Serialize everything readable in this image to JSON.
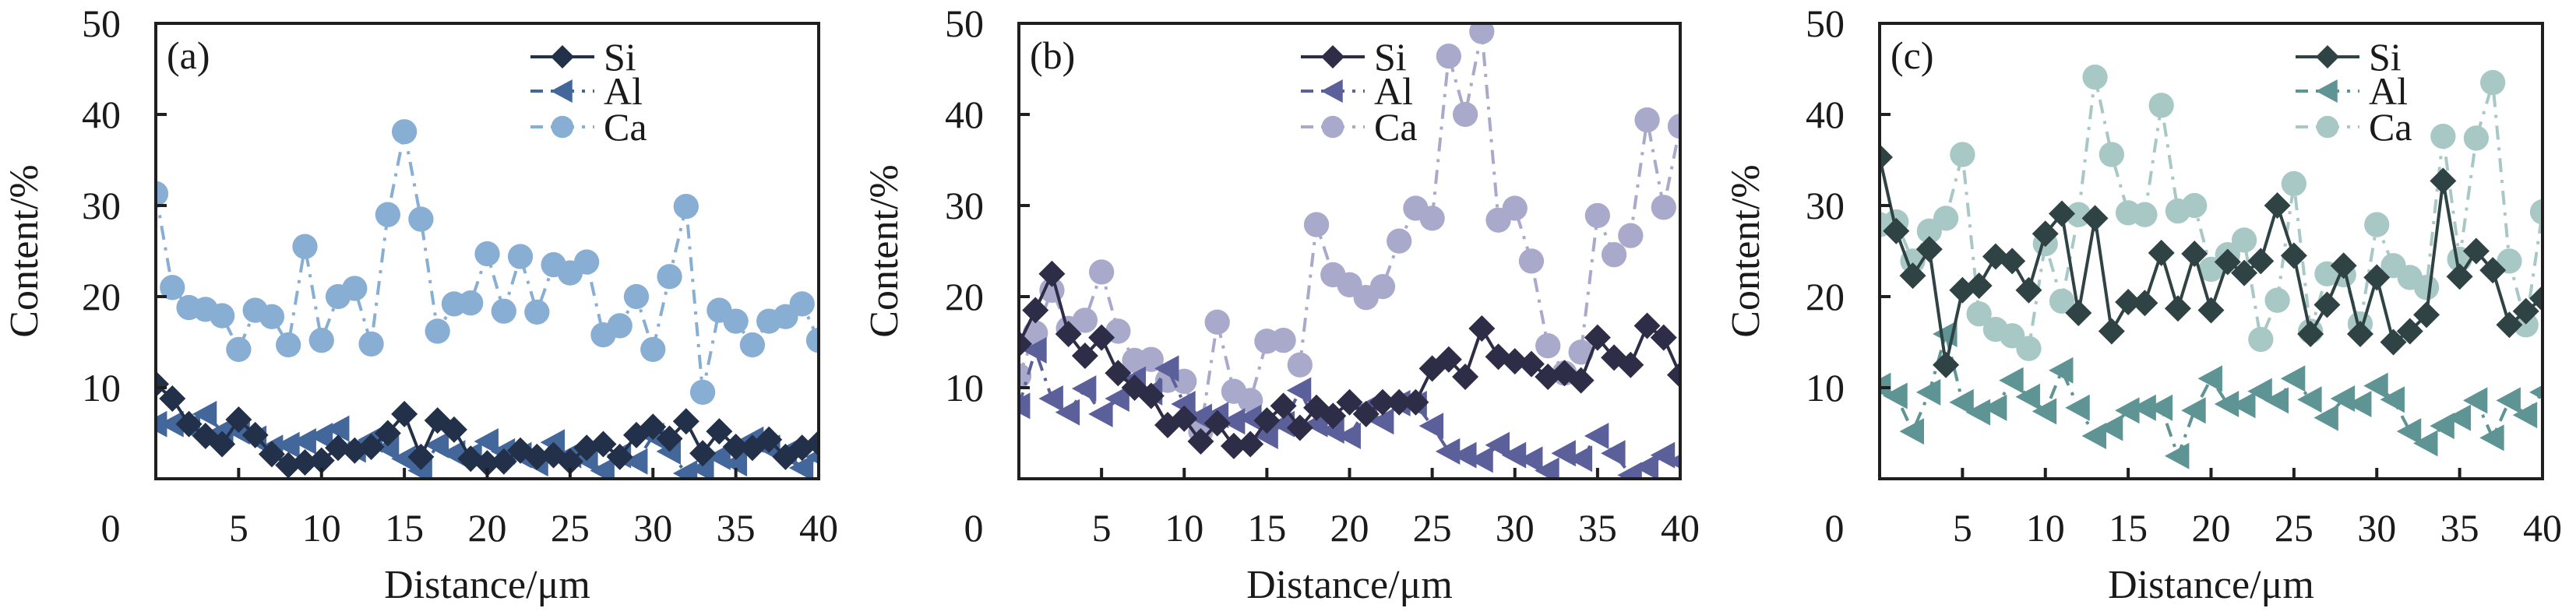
{
  "chart_data": [
    {
      "type": "line",
      "panel_label": "(a)",
      "xlabel": "Distance/μm",
      "ylabel": "Content/%",
      "xlim": [
        0,
        40
      ],
      "ylim": [
        0,
        50
      ],
      "xticks": [
        0,
        5,
        10,
        15,
        20,
        25,
        30,
        35,
        40
      ],
      "yticks": [
        0,
        10,
        20,
        30,
        40,
        50
      ],
      "grid": false,
      "legend_position": "top-right",
      "x": [
        0,
        1,
        2,
        3,
        4,
        5,
        6,
        7,
        8,
        9,
        10,
        11,
        12,
        13,
        14,
        15,
        16,
        17,
        18,
        19,
        20,
        21,
        22,
        23,
        24,
        25,
        26,
        27,
        28,
        29,
        30,
        31,
        32,
        33,
        34,
        35,
        36,
        37,
        38,
        39,
        40
      ],
      "series": [
        {
          "name": "Si",
          "marker": "diamond",
          "line": "solid",
          "color": "#22304a",
          "values": [
            10.4,
            8.8,
            6.0,
            4.7,
            3.8,
            6.5,
            4.8,
            2.7,
            1.5,
            1.8,
            2.0,
            3.4,
            3.1,
            3.5,
            5.0,
            7.1,
            2.4,
            6.4,
            5.4,
            2.2,
            1.7,
            1.9,
            3.1,
            2.4,
            2.6,
            1.9,
            3.4,
            3.8,
            2.4,
            4.8,
            5.7,
            4.4,
            6.3,
            2.8,
            5.2,
            3.5,
            3.4,
            4.3,
            2.4,
            3.4,
            3.9
          ]
        },
        {
          "name": "Al",
          "marker": "triangle-left",
          "line": "dash-dot",
          "color": "#43679b",
          "values": [
            6.0,
            6.0,
            5.7,
            7.1,
            5.2,
            5.2,
            4.4,
            3.4,
            3.7,
            4.1,
            4.7,
            5.5,
            3.2,
            4.3,
            3.4,
            2.2,
            0.9,
            3.7,
            2.8,
            2.6,
            4.1,
            3.0,
            2.6,
            1.7,
            4.0,
            2.6,
            2.1,
            0.9,
            2.6,
            1.9,
            4.7,
            3.0,
            0.6,
            1.1,
            2.4,
            1.7,
            4.3,
            3.4,
            2.8,
            1.2,
            2.4
          ]
        },
        {
          "name": "Ca",
          "marker": "circle",
          "line": "dash-dot",
          "color": "#88aed4",
          "values": [
            31.3,
            21.0,
            18.8,
            18.6,
            17.9,
            14.2,
            18.5,
            17.8,
            14.7,
            25.5,
            15.2,
            20.0,
            20.9,
            14.8,
            29.0,
            38.1,
            28.5,
            16.2,
            19.2,
            19.3,
            24.7,
            18.4,
            24.4,
            18.3,
            23.5,
            22.6,
            23.8,
            15.8,
            16.8,
            20.0,
            14.2,
            22.2,
            29.9,
            9.5,
            18.5,
            17.3,
            14.7,
            17.3,
            17.8,
            19.2,
            15.2
          ]
        }
      ]
    },
    {
      "type": "line",
      "panel_label": "(b)",
      "xlabel": "Distance/μm",
      "ylabel": "Content/%",
      "xlim": [
        0,
        40
      ],
      "ylim": [
        0,
        50
      ],
      "xticks": [
        0,
        5,
        10,
        15,
        20,
        25,
        30,
        35,
        40
      ],
      "yticks": [
        0,
        10,
        20,
        30,
        40,
        50
      ],
      "grid": false,
      "legend_position": "top-center",
      "x": [
        0,
        1,
        2,
        3,
        4,
        5,
        6,
        7,
        8,
        9,
        10,
        11,
        12,
        13,
        14,
        15,
        16,
        17,
        18,
        19,
        20,
        21,
        22,
        23,
        24,
        25,
        26,
        27,
        28,
        29,
        30,
        31,
        32,
        33,
        34,
        35,
        36,
        37,
        38,
        39,
        40
      ],
      "series": [
        {
          "name": "Si",
          "marker": "diamond",
          "line": "solid",
          "color": "#2e2d48",
          "values": [
            14.8,
            18.5,
            22.5,
            15.9,
            13.5,
            15.5,
            11.6,
            10.0,
            9.1,
            5.9,
            6.6,
            4.1,
            6.1,
            3.6,
            3.8,
            6.4,
            8.0,
            5.6,
            7.8,
            6.9,
            8.4,
            7.1,
            8.4,
            8.4,
            8.4,
            12.1,
            13.1,
            11.2,
            16.5,
            13.4,
            12.9,
            12.6,
            11.2,
            11.6,
            10.8,
            15.5,
            13.3,
            12.5,
            16.8,
            15.5,
            11.4
          ]
        },
        {
          "name": "Al",
          "marker": "triangle-left",
          "line": "dash-dot",
          "color": "#5b5f9a",
          "values": [
            8.0,
            14.1,
            8.8,
            7.3,
            9.9,
            7.1,
            8.8,
            10.9,
            9.5,
            12.1,
            8.2,
            6.8,
            7.0,
            6.3,
            6.7,
            4.7,
            6.0,
            9.7,
            6.0,
            5.3,
            4.7,
            7.7,
            6.3,
            8.3,
            8.2,
            5.8,
            3.0,
            2.6,
            2.1,
            3.7,
            2.6,
            2.1,
            0.9,
            2.8,
            2.2,
            4.7,
            2.8,
            0.4,
            1.3,
            2.6,
            1.9
          ]
        },
        {
          "name": "Ca",
          "marker": "circle",
          "line": "dash-dot",
          "color": "#a9a9cc",
          "values": [
            11.3,
            16.0,
            20.7,
            16.5,
            17.4,
            22.7,
            16.2,
            13.0,
            13.1,
            10.8,
            10.7,
            5.2,
            17.2,
            9.6,
            8.6,
            15.1,
            15.2,
            12.5,
            27.9,
            22.4,
            21.3,
            19.9,
            21.1,
            26.1,
            29.7,
            28.6,
            46.4,
            40.0,
            49.1,
            28.4,
            29.7,
            23.9,
            14.6,
            11.6,
            13.9,
            28.9,
            24.6,
            26.7,
            39.4,
            29.8,
            38.7
          ]
        }
      ]
    },
    {
      "type": "line",
      "panel_label": "(c)",
      "xlabel": "Distance/μm",
      "ylabel": "Content/%",
      "xlim": [
        0,
        40
      ],
      "ylim": [
        0,
        50
      ],
      "xticks": [
        0,
        5,
        10,
        15,
        20,
        25,
        30,
        35,
        40
      ],
      "yticks": [
        0,
        10,
        20,
        30,
        40,
        50
      ],
      "grid": false,
      "legend_position": "top-right",
      "x": [
        0,
        1,
        2,
        3,
        4,
        5,
        6,
        7,
        8,
        9,
        10,
        11,
        12,
        13,
        14,
        15,
        16,
        17,
        18,
        19,
        20,
        21,
        22,
        23,
        24,
        25,
        26,
        27,
        28,
        29,
        30,
        31,
        32,
        33,
        34,
        35,
        36,
        37,
        38,
        39,
        40
      ],
      "series": [
        {
          "name": "Si",
          "marker": "diamond",
          "line": "solid",
          "color": "#2f4244",
          "values": [
            35.3,
            27.2,
            22.3,
            25.2,
            12.5,
            20.7,
            21.2,
            24.4,
            23.9,
            20.7,
            26.9,
            29.1,
            18.2,
            28.6,
            16.2,
            19.4,
            19.3,
            24.8,
            18.7,
            24.7,
            18.5,
            23.8,
            22.6,
            23.9,
            30.0,
            24.5,
            15.9,
            19.1,
            23.4,
            15.9,
            22.1,
            15.0,
            16.2,
            18.0,
            32.7,
            22.2,
            25.0,
            22.9,
            16.9,
            18.4,
            19.8
          ]
        },
        {
          "name": "Al",
          "marker": "triangle-left",
          "line": "dash-dot",
          "color": "#5e9493",
          "values": [
            10.2,
            9.1,
            5.2,
            9.5,
            15.9,
            8.4,
            7.3,
            7.8,
            10.8,
            9.0,
            7.4,
            11.9,
            7.8,
            4.7,
            5.6,
            7.5,
            7.8,
            7.8,
            2.5,
            7.5,
            11.0,
            8.2,
            8.1,
            9.6,
            8.6,
            11.0,
            8.7,
            6.7,
            8.8,
            8.2,
            10.2,
            8.7,
            5.2,
            3.9,
            5.8,
            6.7,
            8.6,
            4.5,
            8.6,
            7.0,
            9.5
          ]
        },
        {
          "name": "Ca",
          "marker": "circle",
          "line": "dash-dot",
          "color": "#a8c8c6",
          "values": [
            27.9,
            28.2,
            23.9,
            27.2,
            28.6,
            35.6,
            18.1,
            16.4,
            15.7,
            14.3,
            25.8,
            19.5,
            29.0,
            44.1,
            35.6,
            29.2,
            29.0,
            41.0,
            29.4,
            30.0,
            23.0,
            24.6,
            26.2,
            15.3,
            19.6,
            32.4,
            16.2,
            22.5,
            22.4,
            17.0,
            27.9,
            23.4,
            22.1,
            21.0,
            37.6,
            24.1,
            37.4,
            43.5,
            23.9,
            16.9,
            29.3
          ]
        }
      ]
    }
  ]
}
